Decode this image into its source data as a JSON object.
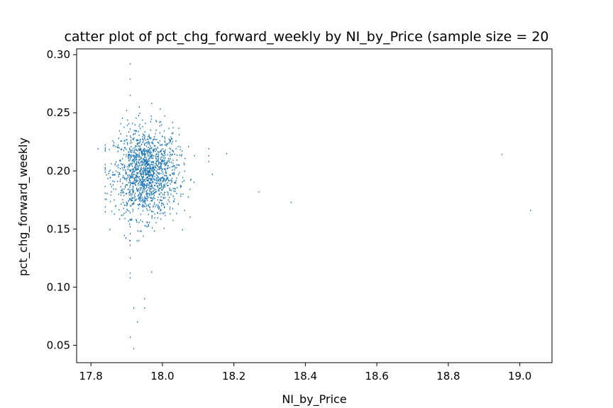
{
  "chart_data": {
    "type": "scatter",
    "title": "catter plot of pct_chg_forward_weekly by NI_by_Price (sample size = 20",
    "xlabel": "NI_by_Price",
    "ylabel": "pct_chg_forward_weekly",
    "xlim": [
      17.76,
      19.09
    ],
    "ylim": [
      0.035,
      0.305
    ],
    "xticks": [
      "17.8",
      "18.0",
      "18.2",
      "18.4",
      "18.6",
      "18.8",
      "19.0"
    ],
    "yticks": [
      "0.05",
      "0.10",
      "0.15",
      "0.20",
      "0.25",
      "0.30"
    ],
    "grid": false,
    "marker_color": "#1f77b4",
    "cluster": {
      "x_center": 17.955,
      "x_spread": 0.045,
      "y_center": 0.198,
      "y_spread": 0.019,
      "count": 1500
    },
    "points": [
      {
        "x": 17.91,
        "y": 0.292
      },
      {
        "x": 17.91,
        "y": 0.279
      },
      {
        "x": 17.91,
        "y": 0.265
      },
      {
        "x": 17.97,
        "y": 0.258
      },
      {
        "x": 17.9,
        "y": 0.252
      },
      {
        "x": 17.91,
        "y": 0.236
      },
      {
        "x": 17.91,
        "y": 0.23
      },
      {
        "x": 17.91,
        "y": 0.224
      },
      {
        "x": 17.91,
        "y": 0.218
      },
      {
        "x": 17.91,
        "y": 0.212
      },
      {
        "x": 17.91,
        "y": 0.206
      },
      {
        "x": 17.91,
        "y": 0.2
      },
      {
        "x": 17.91,
        "y": 0.194
      },
      {
        "x": 17.91,
        "y": 0.188
      },
      {
        "x": 17.91,
        "y": 0.182
      },
      {
        "x": 17.91,
        "y": 0.176
      },
      {
        "x": 17.91,
        "y": 0.17
      },
      {
        "x": 17.91,
        "y": 0.164
      },
      {
        "x": 17.91,
        "y": 0.158
      },
      {
        "x": 17.91,
        "y": 0.152
      },
      {
        "x": 17.91,
        "y": 0.146
      },
      {
        "x": 17.91,
        "y": 0.14
      },
      {
        "x": 17.91,
        "y": 0.136
      },
      {
        "x": 17.91,
        "y": 0.125
      },
      {
        "x": 17.91,
        "y": 0.112
      },
      {
        "x": 17.91,
        "y": 0.108
      },
      {
        "x": 17.97,
        "y": 0.113
      },
      {
        "x": 17.95,
        "y": 0.09
      },
      {
        "x": 17.92,
        "y": 0.082
      },
      {
        "x": 17.95,
        "y": 0.082
      },
      {
        "x": 17.93,
        "y": 0.07
      },
      {
        "x": 17.91,
        "y": 0.057
      },
      {
        "x": 17.92,
        "y": 0.047
      },
      {
        "x": 17.82,
        "y": 0.219
      },
      {
        "x": 18.13,
        "y": 0.219
      },
      {
        "x": 18.13,
        "y": 0.213
      },
      {
        "x": 18.13,
        "y": 0.208
      },
      {
        "x": 18.14,
        "y": 0.197
      },
      {
        "x": 18.18,
        "y": 0.215
      },
      {
        "x": 18.27,
        "y": 0.182
      },
      {
        "x": 18.36,
        "y": 0.173
      },
      {
        "x": 18.95,
        "y": 0.214
      },
      {
        "x": 19.03,
        "y": 0.166
      }
    ]
  }
}
